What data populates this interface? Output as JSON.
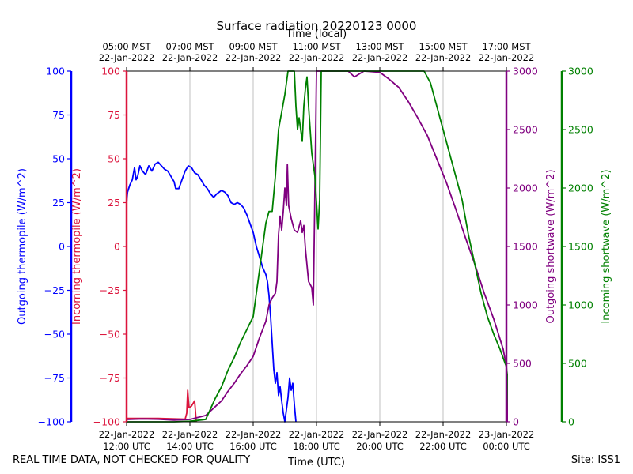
{
  "chart_data": {
    "type": "line",
    "title": "Surface radiation 20220123 0000",
    "top_xlabel": "Time (local)",
    "xlabel": "Time (UTC)",
    "footer_left": "REAL TIME DATA, NOT CHECKED FOR QUALITY",
    "footer_right": "Site: ISS1",
    "grid": "vertical",
    "x_unit": "hours_utc",
    "xlim": [
      12,
      24
    ],
    "bottom_ticks": [
      {
        "x": 12,
        "line1": "22-Jan-2022",
        "line2": "12:00 UTC"
      },
      {
        "x": 14,
        "line1": "22-Jan-2022",
        "line2": "14:00 UTC"
      },
      {
        "x": 16,
        "line1": "22-Jan-2022",
        "line2": "16:00 UTC"
      },
      {
        "x": 18,
        "line1": "22-Jan-2022",
        "line2": "18:00 UTC"
      },
      {
        "x": 20,
        "line1": "22-Jan-2022",
        "line2": "20:00 UTC"
      },
      {
        "x": 22,
        "line1": "22-Jan-2022",
        "line2": "22:00 UTC"
      },
      {
        "x": 24,
        "line1": "23-Jan-2022",
        "line2": "00:00 UTC"
      }
    ],
    "top_ticks": [
      {
        "x": 12,
        "line1": "05:00 MST",
        "line2": "22-Jan-2022"
      },
      {
        "x": 14,
        "line1": "07:00 MST",
        "line2": "22-Jan-2022"
      },
      {
        "x": 16,
        "line1": "09:00 MST",
        "line2": "22-Jan-2022"
      },
      {
        "x": 18,
        "line1": "11:00 MST",
        "line2": "22-Jan-2022"
      },
      {
        "x": 20,
        "line1": "13:00 MST",
        "line2": "22-Jan-2022"
      },
      {
        "x": 22,
        "line1": "15:00 MST",
        "line2": "22-Jan-2022"
      },
      {
        "x": 24,
        "line1": "17:00 MST",
        "line2": "22-Jan-2022"
      }
    ],
    "axes": [
      {
        "id": "outgoing_thermopile",
        "label": "Outgoing thermopile (W/m^2)",
        "color": "#0000ff",
        "ylim": [
          -100,
          100
        ],
        "ticks": [
          "100",
          "75",
          "50",
          "25",
          "0",
          "−25",
          "−50",
          "−75",
          "−100"
        ]
      },
      {
        "id": "incoming_thermopile",
        "label": "Incoming thermopile (W/m^2)",
        "color": "#dc143c",
        "ylim": [
          -100,
          100
        ],
        "ticks": [
          "100",
          "75",
          "50",
          "25",
          "0",
          "−25",
          "−50",
          "−75",
          "−100"
        ]
      },
      {
        "id": "outgoing_shortwave",
        "label": "Outgoing shortwave (W/m^2)",
        "color": "#800080",
        "ylim": [
          0,
          3000
        ],
        "ticks": [
          "3000",
          "2500",
          "2000",
          "1500",
          "1000",
          "500",
          "0"
        ]
      },
      {
        "id": "incoming_shortwave",
        "label": "Incoming shortwave (W/m^2)",
        "color": "#008000",
        "ylim": [
          0,
          3000
        ],
        "ticks": [
          "3000",
          "2500",
          "2000",
          "1500",
          "1000",
          "500",
          "0"
        ]
      }
    ],
    "series": [
      {
        "axis": "outgoing_thermopile",
        "color": "#0000ff",
        "points": [
          [
            12.0,
            25
          ],
          [
            12.03,
            31
          ],
          [
            12.1,
            35
          ],
          [
            12.18,
            38
          ],
          [
            12.25,
            45
          ],
          [
            12.3,
            38
          ],
          [
            12.35,
            40
          ],
          [
            12.42,
            46
          ],
          [
            12.5,
            43
          ],
          [
            12.6,
            41
          ],
          [
            12.7,
            46
          ],
          [
            12.8,
            43
          ],
          [
            12.9,
            47
          ],
          [
            13.0,
            48
          ],
          [
            13.1,
            46
          ],
          [
            13.2,
            44
          ],
          [
            13.3,
            43
          ],
          [
            13.4,
            40
          ],
          [
            13.5,
            37
          ],
          [
            13.55,
            33
          ],
          [
            13.65,
            33
          ],
          [
            13.75,
            38
          ],
          [
            13.85,
            43
          ],
          [
            13.95,
            46
          ],
          [
            14.05,
            45
          ],
          [
            14.15,
            42
          ],
          [
            14.25,
            41
          ],
          [
            14.35,
            38
          ],
          [
            14.45,
            35
          ],
          [
            14.55,
            33
          ],
          [
            14.65,
            30
          ],
          [
            14.75,
            28
          ],
          [
            14.85,
            30
          ],
          [
            15.0,
            32
          ],
          [
            15.1,
            31
          ],
          [
            15.2,
            29
          ],
          [
            15.3,
            25
          ],
          [
            15.4,
            24
          ],
          [
            15.5,
            25
          ],
          [
            15.6,
            24
          ],
          [
            15.7,
            22
          ],
          [
            15.8,
            18
          ],
          [
            15.9,
            13
          ],
          [
            16.0,
            8
          ],
          [
            16.1,
            0
          ],
          [
            16.2,
            -6
          ],
          [
            16.3,
            -12
          ],
          [
            16.4,
            -16
          ],
          [
            16.45,
            -20
          ],
          [
            16.5,
            -28
          ],
          [
            16.55,
            -40
          ],
          [
            16.6,
            -55
          ],
          [
            16.65,
            -70
          ],
          [
            16.7,
            -78
          ],
          [
            16.75,
            -72
          ],
          [
            16.8,
            -85
          ],
          [
            16.85,
            -80
          ],
          [
            16.9,
            -88
          ],
          [
            16.95,
            -95
          ],
          [
            17.0,
            -100
          ],
          [
            17.1,
            -86
          ],
          [
            17.15,
            -75
          ],
          [
            17.2,
            -82
          ],
          [
            17.25,
            -78
          ],
          [
            17.3,
            -90
          ],
          [
            17.35,
            -100
          ]
        ]
      },
      {
        "axis": "incoming_thermopile",
        "color": "#dc143c",
        "points": [
          [
            12.0,
            -98
          ],
          [
            13.0,
            -98
          ],
          [
            13.85,
            -98.5
          ],
          [
            13.9,
            -95
          ],
          [
            13.93,
            -82
          ],
          [
            13.97,
            -92
          ],
          [
            14.05,
            -91
          ],
          [
            14.15,
            -88
          ],
          [
            14.2,
            -100
          ]
        ]
      },
      {
        "axis": "outgoing_shortwave",
        "color": "#800080",
        "points": [
          [
            12.0,
            20
          ],
          [
            12.5,
            25
          ],
          [
            13.0,
            22
          ],
          [
            13.5,
            15
          ],
          [
            14.0,
            20
          ],
          [
            14.5,
            55
          ],
          [
            14.8,
            130
          ],
          [
            15.0,
            180
          ],
          [
            15.2,
            260
          ],
          [
            15.4,
            330
          ],
          [
            15.6,
            410
          ],
          [
            15.8,
            480
          ],
          [
            16.0,
            560
          ],
          [
            16.2,
            720
          ],
          [
            16.4,
            860
          ],
          [
            16.5,
            1000
          ],
          [
            16.6,
            1060
          ],
          [
            16.7,
            1100
          ],
          [
            16.75,
            1200
          ],
          [
            16.8,
            1600
          ],
          [
            16.85,
            1760
          ],
          [
            16.9,
            1640
          ],
          [
            16.95,
            1800
          ],
          [
            17.0,
            2000
          ],
          [
            17.05,
            1850
          ],
          [
            17.08,
            2200
          ],
          [
            17.12,
            1850
          ],
          [
            17.2,
            1740
          ],
          [
            17.3,
            1640
          ],
          [
            17.4,
            1620
          ],
          [
            17.5,
            1720
          ],
          [
            17.55,
            1620
          ],
          [
            17.6,
            1680
          ],
          [
            17.65,
            1480
          ],
          [
            17.75,
            1200
          ],
          [
            17.85,
            1150
          ],
          [
            17.9,
            1000
          ],
          [
            18.0,
            3000
          ],
          [
            19.0,
            3000
          ],
          [
            19.2,
            2950
          ],
          [
            19.5,
            3000
          ],
          [
            20.0,
            2990
          ],
          [
            20.3,
            2930
          ],
          [
            20.6,
            2860
          ],
          [
            20.9,
            2740
          ],
          [
            21.2,
            2600
          ],
          [
            21.5,
            2450
          ],
          [
            21.8,
            2250
          ],
          [
            22.1,
            2050
          ],
          [
            22.4,
            1820
          ],
          [
            22.7,
            1580
          ],
          [
            23.0,
            1350
          ],
          [
            23.3,
            1100
          ],
          [
            23.6,
            880
          ],
          [
            23.9,
            620
          ],
          [
            24.0,
            470
          ],
          [
            24.05,
            0
          ]
        ]
      },
      {
        "axis": "incoming_shortwave",
        "color": "#008000",
        "points": [
          [
            12.0,
            0
          ],
          [
            13.5,
            0
          ],
          [
            14.0,
            5
          ],
          [
            14.5,
            20
          ],
          [
            14.8,
            200
          ],
          [
            15.0,
            300
          ],
          [
            15.2,
            440
          ],
          [
            15.4,
            550
          ],
          [
            15.6,
            680
          ],
          [
            15.8,
            790
          ],
          [
            16.0,
            900
          ],
          [
            16.1,
            1100
          ],
          [
            16.2,
            1300
          ],
          [
            16.3,
            1500
          ],
          [
            16.4,
            1700
          ],
          [
            16.5,
            1800
          ],
          [
            16.6,
            1800
          ],
          [
            16.7,
            2100
          ],
          [
            16.8,
            2500
          ],
          [
            17.0,
            2800
          ],
          [
            17.1,
            3000
          ],
          [
            17.3,
            3000
          ],
          [
            17.35,
            2700
          ],
          [
            17.4,
            2500
          ],
          [
            17.45,
            2600
          ],
          [
            17.5,
            2500
          ],
          [
            17.55,
            2400
          ],
          [
            17.6,
            2700
          ],
          [
            17.65,
            2850
          ],
          [
            17.7,
            2950
          ],
          [
            17.75,
            2700
          ],
          [
            17.85,
            2300
          ],
          [
            17.95,
            2100
          ],
          [
            18.05,
            1650
          ],
          [
            18.1,
            1900
          ],
          [
            18.15,
            3000
          ],
          [
            20.5,
            3000
          ],
          [
            21.0,
            3000
          ],
          [
            21.4,
            3000
          ],
          [
            21.6,
            2900
          ],
          [
            21.8,
            2700
          ],
          [
            22.0,
            2500
          ],
          [
            22.2,
            2300
          ],
          [
            22.4,
            2100
          ],
          [
            22.6,
            1900
          ],
          [
            22.8,
            1600
          ],
          [
            23.0,
            1350
          ],
          [
            23.2,
            1100
          ],
          [
            23.4,
            900
          ],
          [
            23.6,
            750
          ],
          [
            23.8,
            620
          ],
          [
            24.0,
            470
          ],
          [
            24.05,
            350
          ],
          [
            24.08,
            0
          ]
        ]
      }
    ]
  }
}
